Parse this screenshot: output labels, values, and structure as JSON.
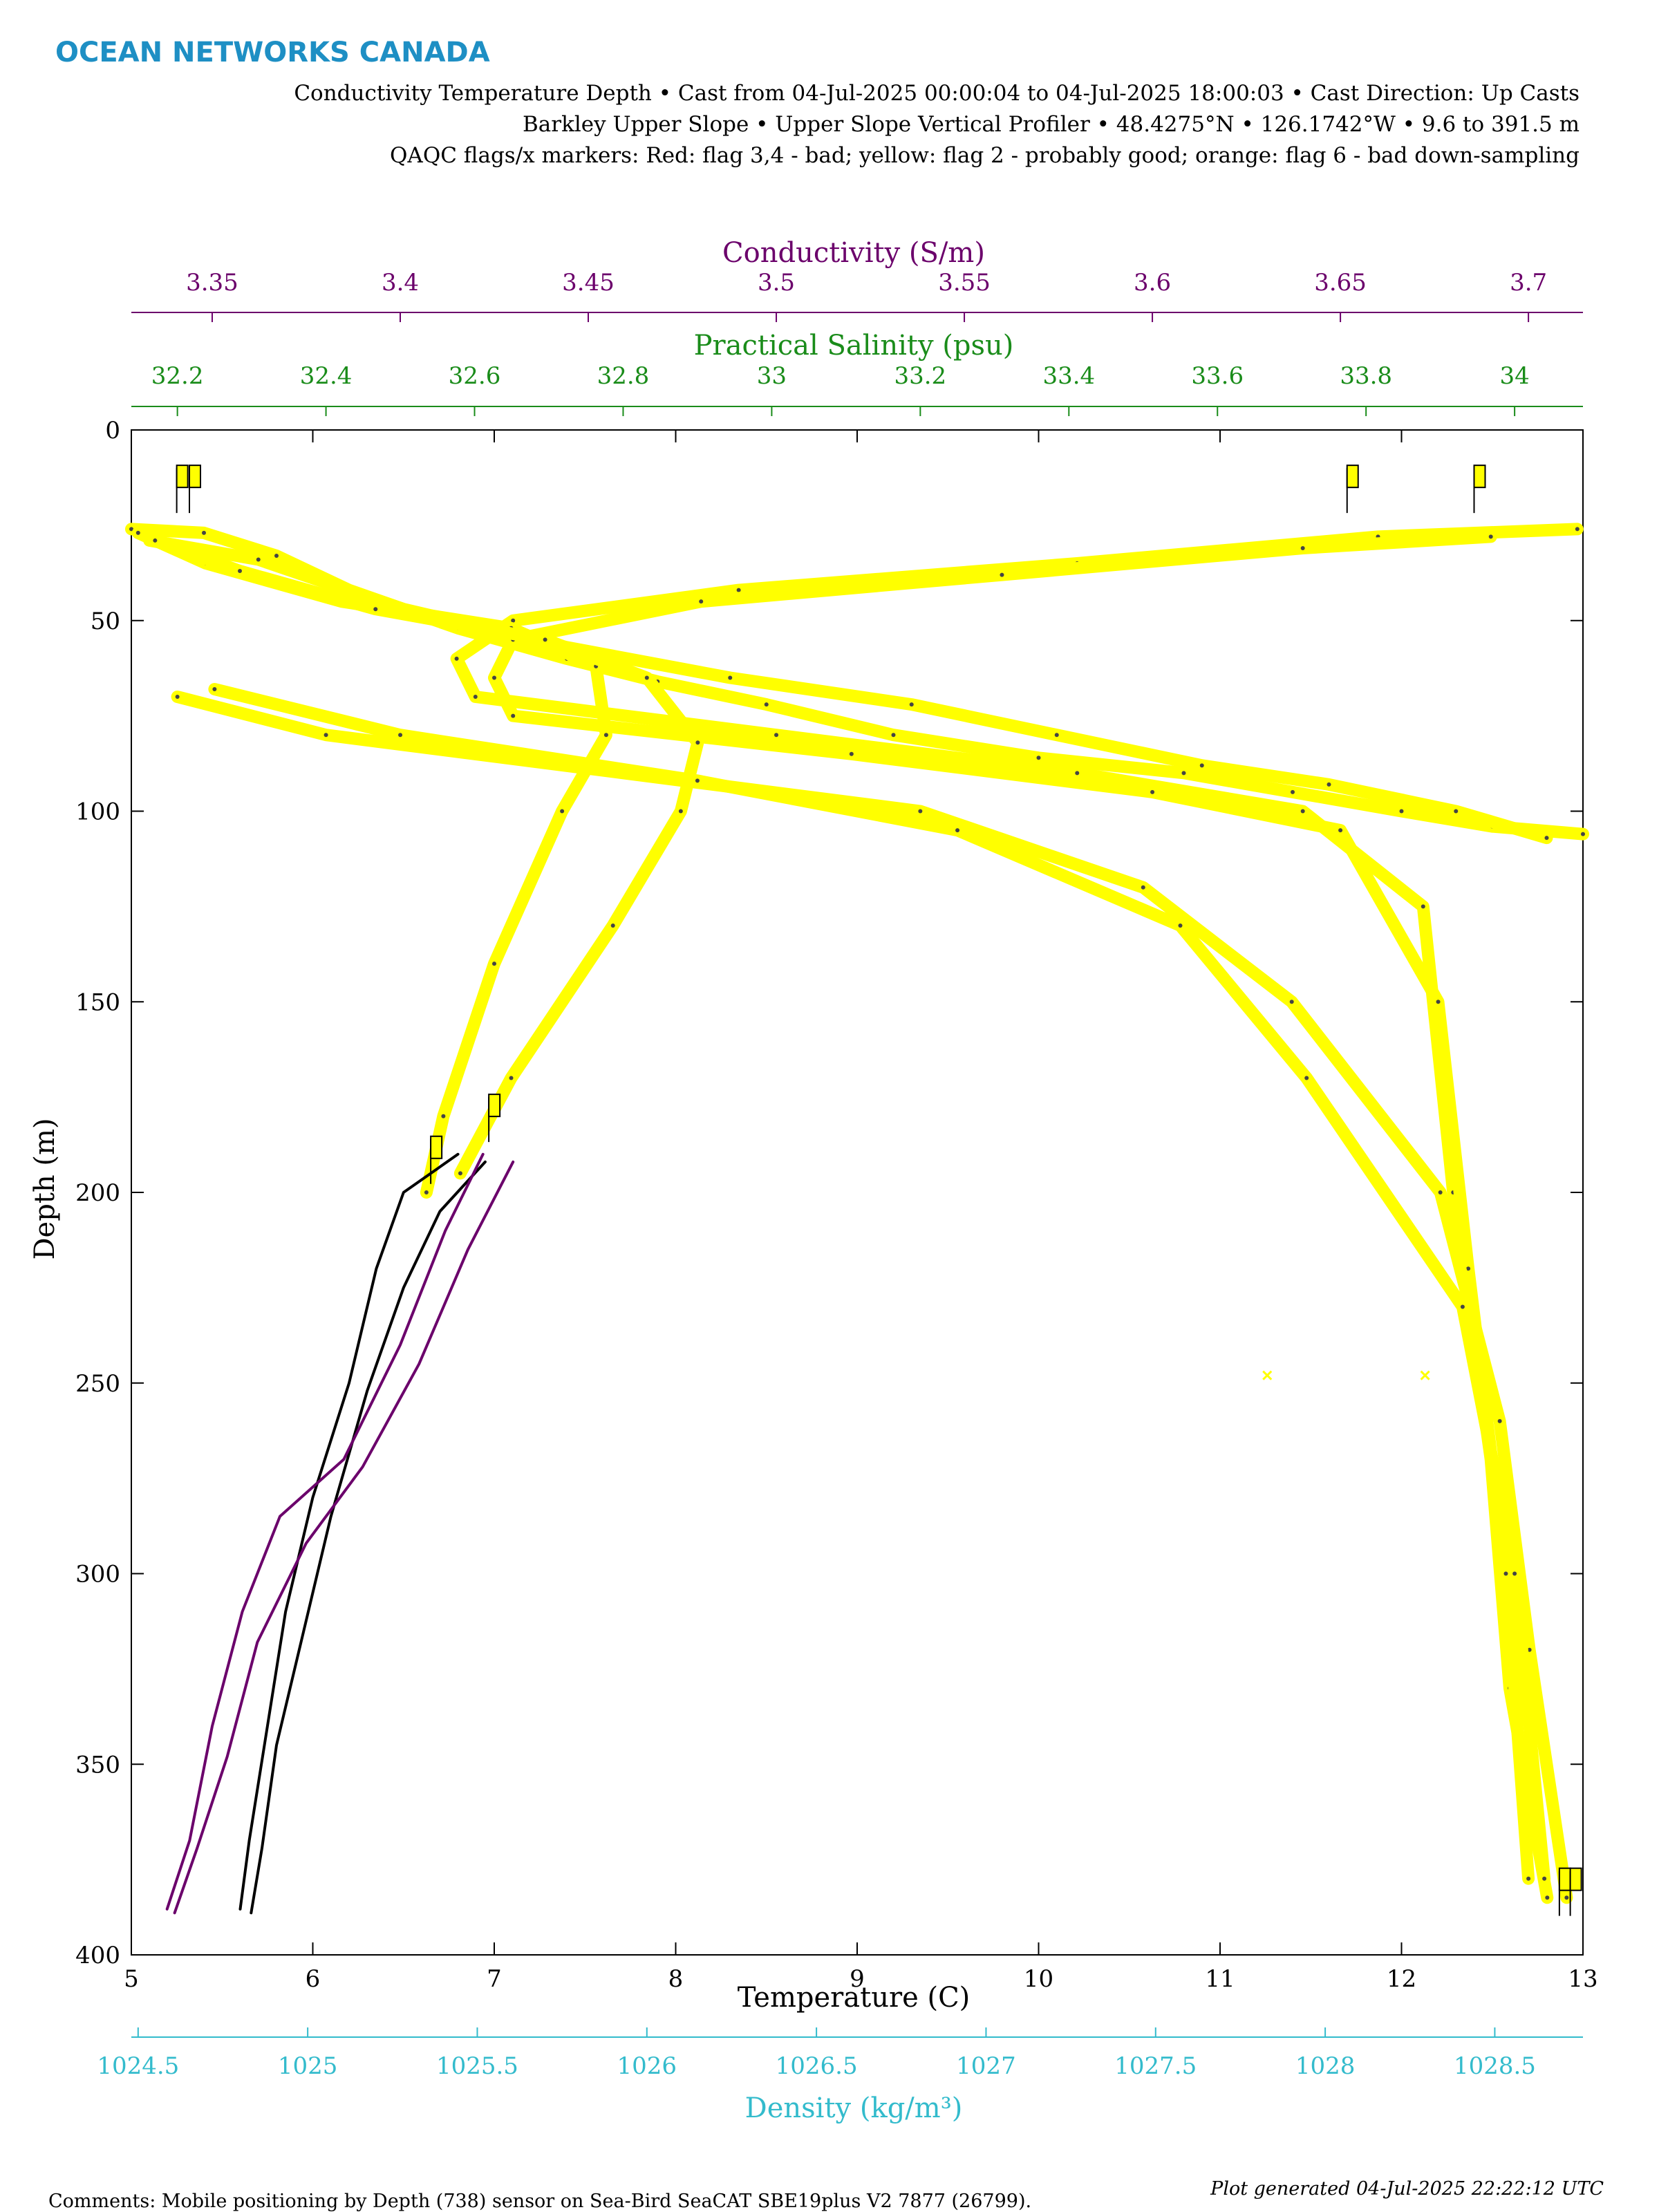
{
  "header": {
    "logo_text": "OCEAN NETWORKS CANADA",
    "title_lines": [
      "Conductivity Temperature Depth • Cast from 04-Jul-2025 00:00:04 to 04-Jul-2025 18:00:03 • Cast Direction: Up Casts",
      "Barkley Upper Slope • Upper Slope Vertical Profiler • 48.4275°N • 126.1742°W • 9.6 to 391.5 m",
      "QAQC flags/x markers: Red: flag 3,4 - bad; yellow: flag 2 - probably good; orange: flag 6 - bad down-sampling"
    ]
  },
  "footer": {
    "comments": "Comments: Mobile positioning by Depth (738) sensor on Sea-Bird SeaCAT SBE19plus V2 7877 (26799).",
    "generated": "Plot generated 04-Jul-2025 22:22:12 UTC"
  },
  "colors": {
    "conductivity": "#6b006b",
    "salinity": "#1a8c1a",
    "density": "#33bbcc",
    "temperature": "#000000",
    "flag_yellow": "#ffff00"
  },
  "chart_data": {
    "type": "scatter",
    "y_axis": {
      "label": "Depth (m)",
      "range": [
        0,
        400
      ],
      "inverted": true,
      "ticks": [
        0,
        50,
        100,
        150,
        200,
        250,
        300,
        350,
        400
      ]
    },
    "axes": {
      "temperature": {
        "label": "Temperature (C)",
        "range": [
          5,
          13
        ],
        "ticks": [
          5,
          6,
          7,
          8,
          9,
          10,
          11,
          12,
          13
        ],
        "color": "#000000",
        "position": "bottom"
      },
      "density": {
        "label": "Density (kg/m³)",
        "range": [
          1024.48,
          1028.76
        ],
        "ticks": [
          1024.5,
          1025,
          1025.5,
          1026,
          1026.5,
          1027,
          1027.5,
          1028,
          1028.5
        ],
        "color": "#33bbcc",
        "position": "bottom-secondary"
      },
      "conductivity": {
        "label": "Conductivity (S/m)",
        "range": [
          3.3285,
          3.7145
        ],
        "ticks": [
          3.35,
          3.4,
          3.45,
          3.5,
          3.55,
          3.6,
          3.65,
          3.7
        ],
        "color": "#6b006b",
        "position": "top"
      },
      "salinity": {
        "label": "Practical Salinity (psu)",
        "range": [
          32.138,
          34.092
        ],
        "ticks": [
          32.2,
          32.4,
          32.6,
          32.8,
          33,
          33.2,
          33.4,
          33.6,
          33.8,
          34
        ],
        "color": "#1a8c1a",
        "position": "top-secondary"
      }
    },
    "series": [
      {
        "name": "",
        "variable": "Temperature",
        "axis": "temperature",
        "flag": "probably good",
        "casts": [
          {
            "x": [
              5.0,
              5.4,
              5.8,
              6.2,
              6.8,
              7.4,
              7.9,
              8.5,
              9.2,
              10.0,
              10.8,
              11.4,
              12.0,
              12.5,
              13.0
            ],
            "y": [
              26,
              27,
              33,
              42,
              52,
              60,
              66,
              72,
              80,
              86,
              90,
              95,
              100,
              104,
              106
            ]
          },
          {
            "x": [
              5.1,
              5.7,
              6.5,
              7.4,
              8.3,
              9.3,
              10.1,
              10.9,
              11.6,
              12.3,
              12.8
            ],
            "y": [
              29,
              34,
              47,
              57,
              65,
              72,
              80,
              88,
              93,
              100,
              107
            ]
          }
        ]
      },
      {
        "name": "",
        "variable": "Conductivity",
        "axis": "conductivity",
        "flag": "probably good",
        "casts": [
          {
            "x": [
              3.713,
              3.66,
              3.58,
              3.49,
              3.43,
              3.415,
              3.42,
              3.5,
              3.58,
              3.64,
              3.672,
              3.68,
              3.69,
              3.695,
              3.705
            ],
            "y": [
              26,
              28,
              35,
              42,
              50,
              60,
              70,
              80,
              90,
              100,
              125,
              200,
              270,
              330,
              385
            ]
          },
          {
            "x": [
              3.69,
              3.64,
              3.56,
              3.48,
              3.43,
              3.425,
              3.43,
              3.52,
              3.6,
              3.65,
              3.676,
              3.684,
              3.694,
              3.7
            ],
            "y": [
              28,
              31,
              38,
              45,
              55,
              65,
              75,
              85,
              95,
              105,
              150,
              220,
              300,
              380
            ]
          }
        ]
      },
      {
        "name": "",
        "variable": "Salinity",
        "axis": "salinity",
        "flag": "probably good",
        "casts": [
          {
            "x": [
              32.2,
              32.4,
              32.8,
              33.2,
              33.5,
              33.7,
              33.9,
              33.98,
              34.02,
              34.07
            ],
            "y": [
              70,
              80,
              90,
              100,
              120,
              150,
              200,
              260,
              320,
              385
            ]
          },
          {
            "x": [
              32.25,
              32.5,
              32.9,
              33.25,
              33.55,
              33.72,
              33.93,
              34.0,
              34.04
            ],
            "y": [
              68,
              80,
              92,
              105,
              130,
              170,
              230,
              300,
              380
            ]
          }
        ]
      },
      {
        "name": "",
        "variable": "Density",
        "axis": "density",
        "flag": "probably good",
        "casts": [
          {
            "x": [
              1024.5,
              1024.7,
              1025.1,
              1025.6,
              1025.85,
              1025.88,
              1025.75,
              1025.55,
              1025.4,
              1025.35
            ],
            "y": [
              27,
              35,
              45,
              52,
              62,
              80,
              100,
              140,
              180,
              200
            ]
          },
          {
            "x": [
              1024.55,
              1024.8,
              1025.2,
              1025.7,
              1026.0,
              1026.15,
              1026.1,
              1025.9,
              1025.6,
              1025.45
            ],
            "y": [
              29,
              37,
              47,
              55,
              65,
              82,
              100,
              130,
              170,
              195
            ]
          }
        ]
      },
      {
        "name": "",
        "variable": "Temperature",
        "axis": "temperature",
        "flag": "good",
        "casts": [
          {
            "x": [
              6.8,
              6.5,
              6.35,
              6.2,
              6.0,
              5.85,
              5.75,
              5.65,
              5.6
            ],
            "y": [
              190,
              200,
              220,
              250,
              280,
              310,
              340,
              370,
              388
            ]
          },
          {
            "x": [
              6.95,
              6.7,
              6.5,
              6.3,
              6.1,
              5.95,
              5.8,
              5.72,
              5.66
            ],
            "y": [
              192,
              205,
              225,
              252,
              285,
              315,
              345,
              372,
              389
            ]
          }
        ]
      },
      {
        "name": "",
        "variable": "Conductivity",
        "axis": "conductivity",
        "flag": "good",
        "casts": [
          {
            "x": [
              3.422,
              3.412,
              3.4,
              3.385,
              3.368,
              3.358,
              3.35,
              3.344,
              3.338
            ],
            "y": [
              190,
              210,
              240,
              270,
              285,
              310,
              340,
              370,
              388
            ]
          },
          {
            "x": [
              3.43,
              3.418,
              3.405,
              3.39,
              3.375,
              3.362,
              3.354,
              3.346,
              3.34
            ],
            "y": [
              192,
              215,
              245,
              272,
              292,
              318,
              348,
              372,
              389
            ]
          }
        ]
      }
    ],
    "flag_markers": {
      "label": "",
      "x_temperature": [
        5.25,
        5.32,
        11.7,
        12.4,
        6.65,
        6.97,
        12.87,
        12.93
      ],
      "y": [
        10,
        10,
        10,
        10,
        186,
        175,
        378,
        378
      ]
    },
    "isolated_points": {
      "x_temperature": [
        11.26,
        12.13
      ],
      "y": [
        248,
        248
      ]
    }
  }
}
